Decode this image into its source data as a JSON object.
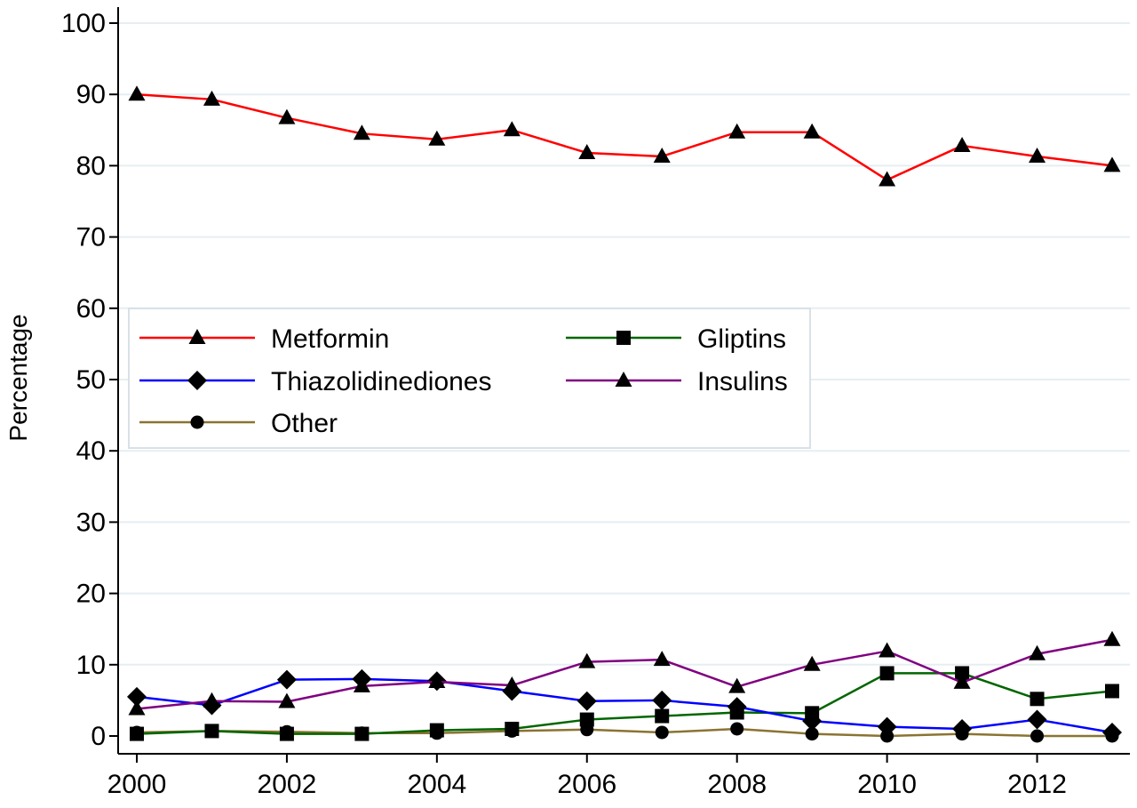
{
  "chart_data": {
    "type": "line",
    "title": "",
    "xlabel": "",
    "ylabel": "Percentage",
    "x": [
      2000,
      2001,
      2002,
      2003,
      2004,
      2005,
      2006,
      2007,
      2008,
      2009,
      2010,
      2011,
      2012,
      2013
    ],
    "xlim": [
      2000,
      2013
    ],
    "ylim": [
      0,
      100
    ],
    "x_ticks": [
      2000,
      2002,
      2004,
      2006,
      2008,
      2010,
      2012
    ],
    "y_ticks": [
      0,
      10,
      20,
      30,
      40,
      50,
      60,
      70,
      80,
      90,
      100
    ],
    "grid": "horizontal",
    "legend_position": "center-left",
    "series": [
      {
        "name": "Metformin",
        "color": "#ff0000",
        "marker": "triangle",
        "values": [
          90,
          89.3,
          86.7,
          84.5,
          83.7,
          85,
          81.8,
          81.3,
          84.7,
          84.7,
          78,
          82.8,
          81.3,
          80
        ]
      },
      {
        "name": "Gliptins",
        "color": "#006600",
        "marker": "square",
        "values": [
          0.3,
          0.7,
          0.3,
          0.3,
          0.8,
          1.0,
          2.3,
          2.8,
          3.3,
          3.2,
          8.8,
          8.8,
          5.2,
          6.3
        ]
      },
      {
        "name": "Thiazolidinediones",
        "color": "#0000ff",
        "marker": "diamond",
        "values": [
          5.5,
          4.3,
          7.9,
          8,
          7.7,
          6.3,
          4.9,
          5.0,
          4.1,
          2.1,
          1.3,
          1.0,
          2.3,
          0.5
        ]
      },
      {
        "name": "Insulins",
        "color": "#800080",
        "marker": "triangle",
        "values": [
          3.8,
          4.9,
          4.8,
          7,
          7.6,
          7.1,
          10.4,
          10.7,
          6.9,
          10,
          11.9,
          7.5,
          11.5,
          13.5
        ]
      },
      {
        "name": "Other",
        "color": "#8b7332",
        "marker": "circle",
        "values": [
          0.5,
          0.7,
          0.6,
          0.4,
          0.4,
          0.7,
          0.9,
          0.5,
          1.0,
          0.3,
          0,
          0.3,
          0,
          0
        ]
      }
    ]
  }
}
